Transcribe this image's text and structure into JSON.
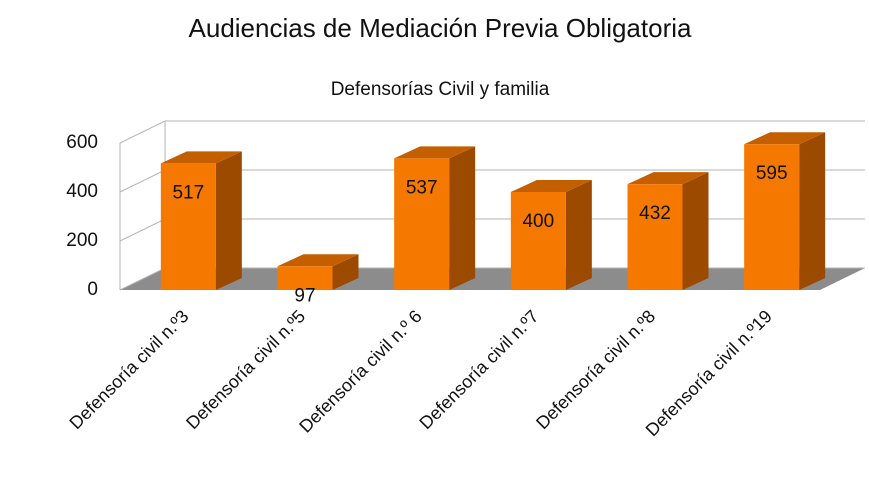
{
  "chart_data": {
    "type": "bar",
    "title": "Audiencias de Mediación Previa Obligatoria",
    "subtitle": "Defensorías Civil y familia",
    "categories": [
      "Defensoría civil n.º3",
      "Defensoría civil n.º5",
      "Defensoría civil n.º 6",
      "Defensoría civil n.º7",
      "Defensoría civil n.º8",
      "Defensoría civil n.º19"
    ],
    "values": [
      517,
      97,
      537,
      400,
      432,
      595
    ],
    "color": "#f57900",
    "ylim": [
      0,
      600
    ],
    "yticks": [
      0,
      200,
      400,
      600
    ],
    "grid": true
  }
}
